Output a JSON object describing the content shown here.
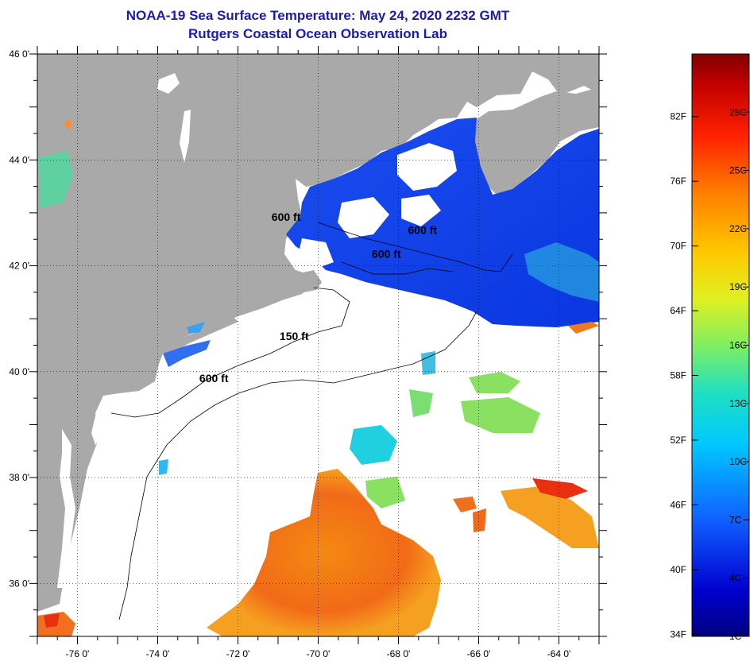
{
  "header": {
    "title": "NOAA-19 Sea Surface Temperature:  May 24, 2020 2232 GMT",
    "subtitle": "Rutgers Coastal Ocean Observation Lab"
  },
  "map": {
    "lon_range": [
      -77,
      -63
    ],
    "lat_range": [
      35,
      46
    ],
    "lon_ticks": [
      {
        "value": -76,
        "label": "-76 0'"
      },
      {
        "value": -74,
        "label": "-74 0'"
      },
      {
        "value": -72,
        "label": "-72 0'"
      },
      {
        "value": -70,
        "label": "-70 0'"
      },
      {
        "value": -68,
        "label": "-68 0'"
      },
      {
        "value": -66,
        "label": "-66 0'"
      },
      {
        "value": -64,
        "label": "-64 0'"
      }
    ],
    "lat_ticks": [
      {
        "value": 46,
        "label": "46 0'"
      },
      {
        "value": 44,
        "label": "44 0'"
      },
      {
        "value": 42,
        "label": "42 0'"
      },
      {
        "value": 40,
        "label": "40 0'"
      },
      {
        "value": 38,
        "label": "38 0'"
      },
      {
        "value": 36,
        "label": "36 0'"
      }
    ],
    "land_color": "#a9a9a9",
    "isobath_labels": [
      {
        "text": "600 ft",
        "lon": -70.8,
        "lat": 42.85
      },
      {
        "text": "600 ft",
        "lon": -67.4,
        "lat": 42.6
      },
      {
        "text": "600 ft",
        "lon": -68.3,
        "lat": 42.15
      },
      {
        "text": "150 ft",
        "lon": -70.6,
        "lat": 40.6
      },
      {
        "text": "600 ft",
        "lon": -72.6,
        "lat": 39.8
      }
    ]
  },
  "colorbar": {
    "fahrenheit_labels": [
      "82F",
      "76F",
      "70F",
      "64F",
      "58F",
      "52F",
      "46F",
      "40F",
      "34F"
    ],
    "celsius_labels": [
      "28C",
      "25C",
      "22C",
      "19C",
      "16C",
      "13C",
      "10C",
      "7C",
      "4C",
      "1C"
    ],
    "range_c": [
      1,
      31
    ]
  }
}
